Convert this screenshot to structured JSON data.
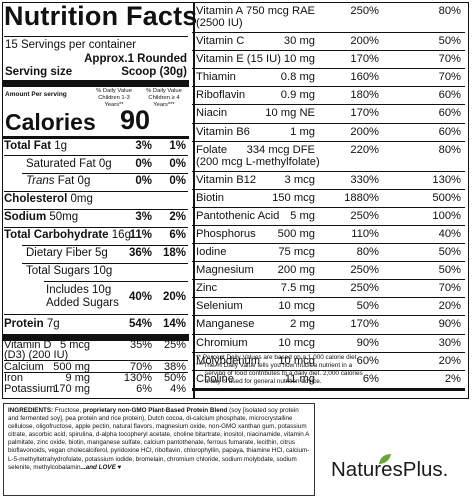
{
  "panel": {
    "title": "Nutrition Facts",
    "servings": "15 Servings per container",
    "serving_size_label": "Serving size",
    "serving_size_value_line1": "Approx.1 Rounded",
    "serving_size_value_line2": "Scoop (30g)",
    "amount_per_serving": "Amount Per serving",
    "dv_header_children_13": "% Daily Value Children 1-3 Years**",
    "dv_header_children_4": "% Daily Value Children ≥ 4 Years***",
    "calories_label": "Calories",
    "calories_value": "90",
    "left_rows": [
      {
        "label": "Total Fat",
        "amount": "1g",
        "c13": "3%",
        "c4": "1%",
        "bold": true
      },
      {
        "label": "Saturated Fat",
        "amount": "0g",
        "c13": "0%",
        "c4": "0%",
        "bold": false
      },
      {
        "label": "Trans",
        "label_suffix": "Fat 0g",
        "amount": "",
        "c13": "0%",
        "c4": "0%",
        "bold": false
      },
      {
        "label": "Cholesterol",
        "amount": "0mg",
        "c13": "",
        "c4": "",
        "bold": true
      },
      {
        "label": "Sodium",
        "amount": "50mg",
        "c13": "3%",
        "c4": "2%",
        "bold": true
      },
      {
        "label": "Total Carbohydrate",
        "amount": "16g",
        "c13": "11%",
        "c4": "6%",
        "bold": true
      },
      {
        "label": "Dietary Fiber",
        "amount": "5g",
        "c13": "36%",
        "c4": "18%",
        "bold": false
      },
      {
        "label": "Total Sugars",
        "amount": "10g",
        "c13": "",
        "c4": "",
        "bold": false
      },
      {
        "label": "Includes 10g",
        "label_line2": "Added Sugars",
        "amount": "",
        "c13": "40%",
        "c4": "20%",
        "bold": false
      },
      {
        "label": "Protein",
        "amount": "7g",
        "c13": "54%",
        "c4": "14%",
        "bold": true
      }
    ],
    "vitamin_d": {
      "label": "Vitamin D",
      "label_line2": "(D3) (200 IU)",
      "amount": "5 mcg",
      "c13": "35%",
      "c4": "25%"
    },
    "minerals_left": [
      {
        "label": "Calcium",
        "amount": "500 mg",
        "c13": "70%",
        "c4": "38%"
      },
      {
        "label": "Iron",
        "amount": "9 mg",
        "c13": "130%",
        "c4": "50%"
      },
      {
        "label": "Potassium",
        "amount": "170 mg",
        "c13": "6%",
        "c4": "4%"
      }
    ],
    "right_rows": [
      {
        "label": "Vitamin A",
        "label_line2": "(2500 IU)",
        "amount": "750 mcg RAE",
        "c13": "250%",
        "c4": "80%"
      },
      {
        "label": "Vitamin C",
        "amount": "30 mg",
        "c13": "200%",
        "c4": "50%"
      },
      {
        "label": "Vitamin E (15 IU)",
        "amount": "10 mg",
        "c13": "170%",
        "c4": "70%"
      },
      {
        "label": "Thiamin",
        "amount": "0.8 mg",
        "c13": "160%",
        "c4": "70%"
      },
      {
        "label": "Riboflavin",
        "amount": "0.9 mg",
        "c13": "180%",
        "c4": "60%"
      },
      {
        "label": "Niacin",
        "amount": "10 mg NE",
        "c13": "170%",
        "c4": "60%"
      },
      {
        "label": "Vitamin B6",
        "amount": "1 mg",
        "c13": "200%",
        "c4": "60%"
      },
      {
        "label": "Folate",
        "label_line2": "(200 mcg L-methylfolate)",
        "amount": "334 mcg DFE",
        "c13": "220%",
        "c4": "80%"
      },
      {
        "label": "Vitamin B12",
        "amount": "3 mcg",
        "c13": "330%",
        "c4": "130%"
      },
      {
        "label": "Biotin",
        "amount": "150 mcg",
        "c13": "1880%",
        "c4": "500%"
      },
      {
        "label": "Pantothenic Acid",
        "amount": "5 mg",
        "c13": "250%",
        "c4": "100%"
      },
      {
        "label": "Phosphorus",
        "amount": "500 mg",
        "c13": "110%",
        "c4": "40%"
      },
      {
        "label": "Iodine",
        "amount": "75 mcg",
        "c13": "80%",
        "c4": "50%"
      },
      {
        "label": "Magnesium",
        "amount": "200 mg",
        "c13": "250%",
        "c4": "50%"
      },
      {
        "label": "Zinc",
        "amount": "7.5 mg",
        "c13": "250%",
        "c4": "70%"
      },
      {
        "label": "Selenium",
        "amount": "10 mcg",
        "c13": "50%",
        "c4": "20%"
      },
      {
        "label": "Manganese",
        "amount": "2 mg",
        "c13": "170%",
        "c4": "90%"
      },
      {
        "label": "Chromium",
        "amount": "10 mcg",
        "c13": "90%",
        "c4": "30%"
      },
      {
        "label": "Molybdenum",
        "amount": "10 mcg",
        "c13": "60%",
        "c4": "20%"
      },
      {
        "label": "Choline",
        "amount": "11 mg",
        "c13": "6%",
        "c4": "2%"
      }
    ],
    "footnotes": [
      "** Percent Daily Values are based on a 1,000 calorie diet.",
      "***The % Daily Value tells you how much a nutrient in a",
      "serving of food contributes to a daily diet. 2,000 calories",
      "a day is used for general nutrition advice."
    ]
  },
  "ingredients": {
    "label": "INGREDIENTS:",
    "text_a": " Fructose, ",
    "proprietary_label": "proprietary non-GMO Plant-Based Protein Blend",
    "text_b": " (soy [isolated soy protein and fermented soy], pea protein and rice protein), Dutch cocoa, di-calcium phosphate, microcrystalline cellulose, oligofructose, apple pectin, natural flavors, magnesium oxide, non-GMO xanthan gum, potassium citrate, ascorbic acid, spirulina, d-alpha tocopheryl acetate, choline bitartrate, inositol, niacinamide, vitamin A palmitate, zinc oxide, biotin, manganese sulfate, calcium pantothenate, ferrous fumarate, lecithin, citrus bioflavonoids, vegan cholecalciferol, pyridoxine HCl, riboflavin, chlorophyllin, papaya, thiamine HCl, calcium-L-5-methyltetrahydrofolate, potassium iodide, bromelain, chromium chloride, sodium molybdate, sodium selenite, methylcobalamin",
    "ending": "...and LOVE ♥"
  },
  "logo": {
    "text": "NaturesPlus.",
    "colors": {
      "leaf_green": "#6aa53a",
      "text": "#1a1a1a"
    }
  }
}
